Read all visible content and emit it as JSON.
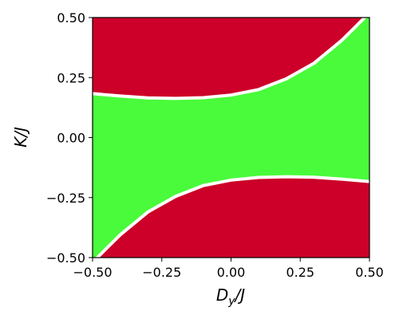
{
  "chart_data": {
    "type": "area",
    "xlabel": {
      "base": "D",
      "sub": "y",
      "rest": "/J"
    },
    "ylabel": "K/J",
    "xlim": [
      -0.5,
      0.5
    ],
    "ylim": [
      -0.5,
      0.5
    ],
    "x_ticks": [
      -0.5,
      -0.25,
      0.0,
      0.25,
      0.5
    ],
    "x_tick_labels": [
      "−0.50",
      "−0.25",
      "0.00",
      "0.25",
      "0.50"
    ],
    "y_ticks": [
      -0.5,
      -0.25,
      0.0,
      0.25,
      0.5
    ],
    "y_tick_labels": [
      "−0.50",
      "−0.25",
      "0.00",
      "0.25",
      "0.50"
    ],
    "colors": {
      "region_outer": "#cc0029",
      "region_middle": "#49fb3b",
      "boundary": "#ffffff"
    },
    "boundaries": [
      {
        "x": [
          -0.5,
          -0.4,
          -0.3,
          -0.2,
          -0.1,
          0.0,
          0.1,
          0.2,
          0.3,
          0.4,
          0.45,
          0.5
        ],
        "y": [
          0.183,
          0.173,
          0.165,
          0.163,
          0.166,
          0.177,
          0.2,
          0.245,
          0.31,
          0.405,
          0.462,
          0.52
        ]
      },
      {
        "x": [
          -0.5,
          -0.45,
          -0.4,
          -0.3,
          -0.2,
          -0.1,
          0.0,
          0.1,
          0.2,
          0.3,
          0.4,
          0.5
        ],
        "y": [
          -0.52,
          -0.462,
          -0.405,
          -0.31,
          -0.245,
          -0.2,
          -0.177,
          -0.166,
          -0.163,
          -0.165,
          -0.173,
          -0.183
        ]
      }
    ]
  }
}
